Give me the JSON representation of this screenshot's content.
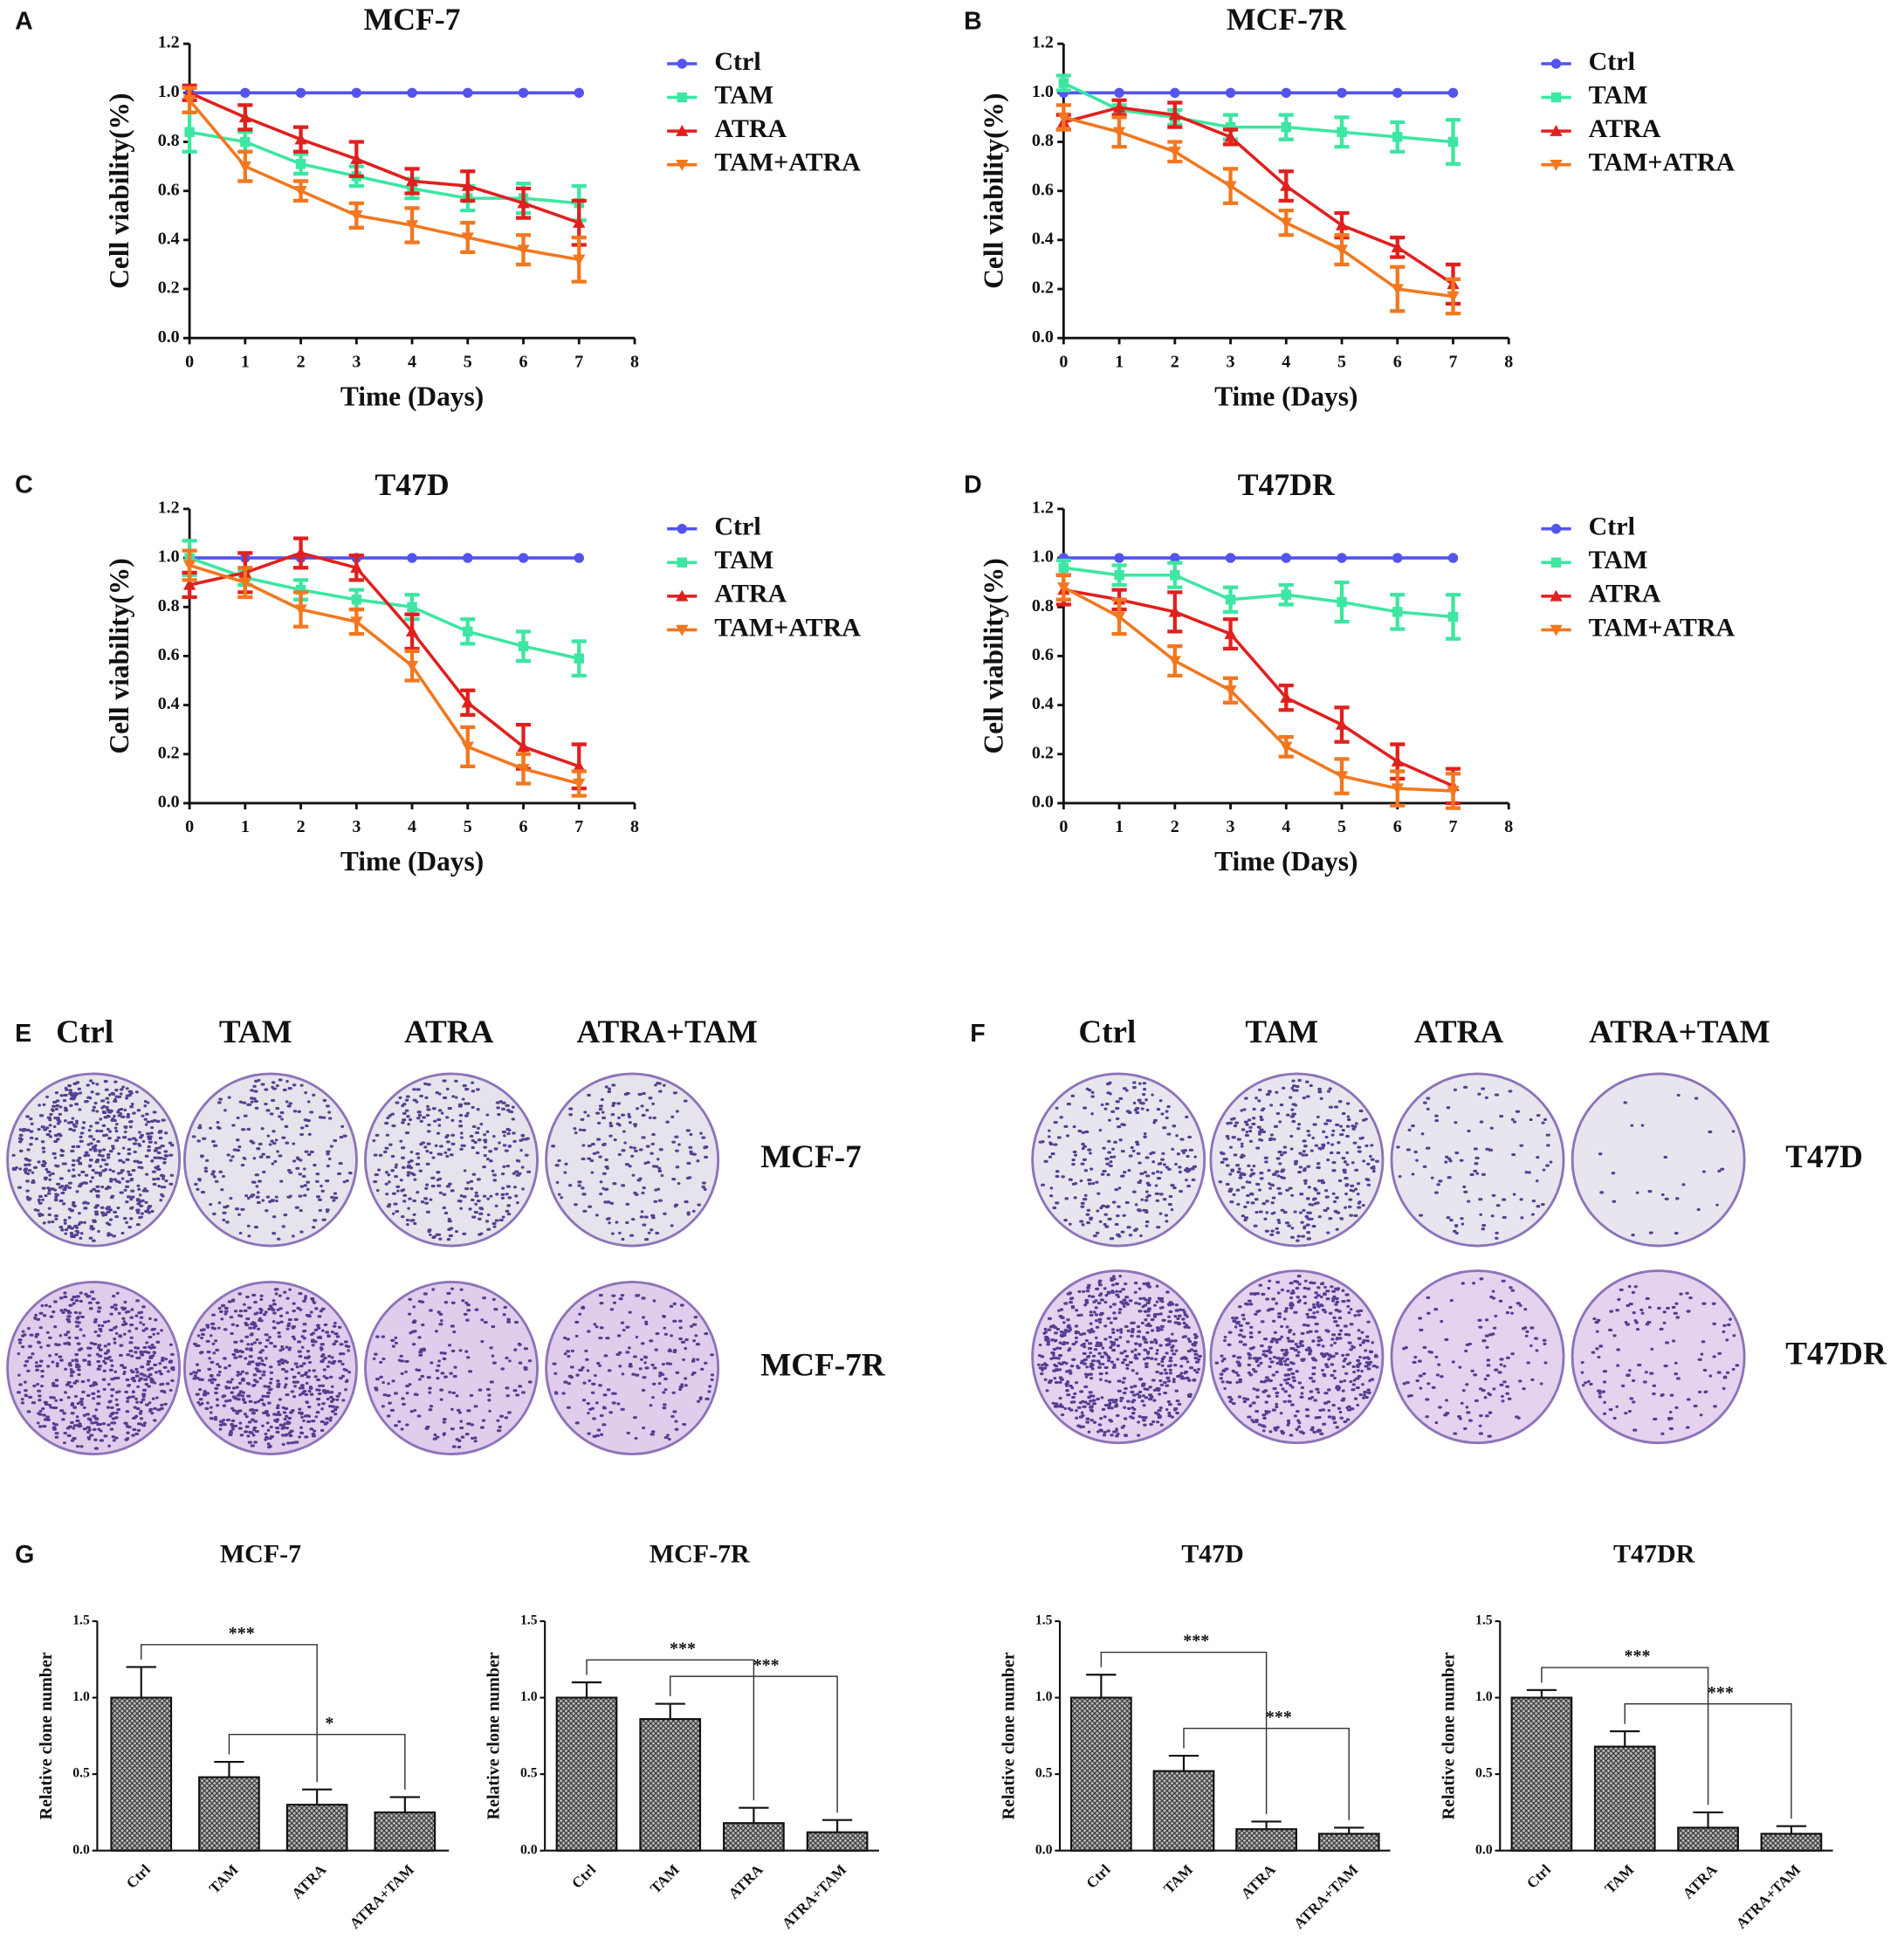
{
  "panel_labels": [
    "A",
    "B",
    "C",
    "D",
    "E",
    "F",
    "G"
  ],
  "plates": [
    {
      "columns": [
        "Ctrl",
        "TAM",
        "ATRA",
        "ATRA+TAM"
      ],
      "rows": [
        "MCF-7",
        "MCF-7R"
      ]
    },
    {
      "columns": [
        "Ctrl",
        "TAM",
        "ATRA",
        "ATRA+TAM"
      ],
      "rows": [
        "T47D",
        "T47DR"
      ]
    }
  ],
  "chart_data": [
    {
      "type": "line",
      "title": "MCF-7",
      "xlabel": "Time (Days)",
      "ylabel": "Cell viability(%)",
      "x": [
        0,
        1,
        2,
        3,
        4,
        5,
        6,
        7
      ],
      "xlim": [
        0,
        8
      ],
      "xticks": [
        0,
        1,
        2,
        3,
        4,
        5,
        6,
        7,
        8
      ],
      "ylim": [
        0,
        1.2
      ],
      "yticks": [
        {
          "value": 0,
          "label": "0.0"
        },
        0.2,
        0.4,
        0.6,
        0.8,
        {
          "value": 1,
          "label": "1.0"
        },
        1.2
      ],
      "series": [
        {
          "name": "Ctrl",
          "color": "#5353ee",
          "marker": "circle",
          "values": [
            1,
            1,
            1,
            1,
            1,
            1,
            1,
            1
          ],
          "errors": [
            0,
            0,
            0,
            0,
            0,
            0,
            0,
            0
          ]
        },
        {
          "name": "TAM",
          "color": "#3de6a2",
          "marker": "square",
          "values": [
            0.84,
            0.8,
            0.71,
            0.66,
            0.61,
            0.57,
            0.57,
            0.55
          ],
          "errors": [
            0.08,
            0.04,
            0.04,
            0.04,
            0.04,
            0.05,
            0.06,
            0.07
          ]
        },
        {
          "name": "ATRA",
          "color": "#e0201e",
          "marker": "triangle-up",
          "values": [
            1,
            0.9,
            0.81,
            0.73,
            0.64,
            0.62,
            0.55,
            0.47
          ],
          "errors": [
            0.03,
            0.05,
            0.05,
            0.07,
            0.05,
            0.06,
            0.06,
            0.09
          ]
        },
        {
          "name": "TAM+ATRA",
          "color": "#f2771f",
          "marker": "triangle-down",
          "values": [
            0.97,
            0.7,
            0.6,
            0.5,
            0.46,
            0.41,
            0.36,
            0.32
          ],
          "errors": [
            0.05,
            0.06,
            0.04,
            0.05,
            0.07,
            0.06,
            0.06,
            0.09
          ]
        }
      ]
    },
    {
      "type": "line",
      "title": "MCF-7R",
      "xlabel": "Time (Days)",
      "ylabel": "Cell viability(%)",
      "x": [
        0,
        1,
        2,
        3,
        4,
        5,
        6,
        7
      ],
      "xlim": [
        0,
        8
      ],
      "xticks": [
        0,
        1,
        2,
        3,
        4,
        5,
        6,
        7,
        8
      ],
      "ylim": [
        0,
        1.2
      ],
      "yticks": [
        {
          "value": 0,
          "label": "0.0"
        },
        0.2,
        0.4,
        0.6,
        0.8,
        {
          "value": 1,
          "label": "1.0"
        },
        1.2
      ],
      "series": [
        {
          "name": "Ctrl",
          "color": "#5353ee",
          "marker": "circle",
          "values": [
            1,
            1,
            1,
            1,
            1,
            1,
            1,
            1
          ],
          "errors": [
            0,
            0,
            0,
            0,
            0,
            0,
            0,
            0
          ]
        },
        {
          "name": "TAM",
          "color": "#3de6a2",
          "marker": "square",
          "values": [
            1.04,
            0.93,
            0.9,
            0.86,
            0.86,
            0.84,
            0.82,
            0.8
          ],
          "errors": [
            0.03,
            0.02,
            0.03,
            0.05,
            0.05,
            0.06,
            0.06,
            0.09
          ]
        },
        {
          "name": "ATRA",
          "color": "#e0201e",
          "marker": "triangle-up",
          "values": [
            0.88,
            0.94,
            0.91,
            0.82,
            0.62,
            0.46,
            0.37,
            0.22
          ],
          "errors": [
            0.03,
            0.03,
            0.05,
            0.03,
            0.06,
            0.05,
            0.04,
            0.08
          ]
        },
        {
          "name": "TAM+ATRA",
          "color": "#f2771f",
          "marker": "triangle-down",
          "values": [
            0.9,
            0.84,
            0.76,
            0.62,
            0.47,
            0.36,
            0.2,
            0.17
          ],
          "errors": [
            0.05,
            0.06,
            0.04,
            0.07,
            0.05,
            0.06,
            0.09,
            0.07
          ]
        }
      ]
    },
    {
      "type": "line",
      "title": "T47D",
      "xlabel": "Time (Days)",
      "ylabel": "Cell viability(%)",
      "x": [
        0,
        1,
        2,
        3,
        4,
        5,
        6,
        7
      ],
      "xlim": [
        0,
        8
      ],
      "xticks": [
        0,
        1,
        2,
        3,
        4,
        5,
        6,
        7,
        8
      ],
      "ylim": [
        0,
        1.2
      ],
      "yticks": [
        {
          "value": 0,
          "label": "0.0"
        },
        0.2,
        0.4,
        0.6,
        0.8,
        {
          "value": 1,
          "label": "1.0"
        },
        1.2
      ],
      "series": [
        {
          "name": "Ctrl",
          "color": "#5353ee",
          "marker": "circle",
          "values": [
            1,
            1,
            1,
            1,
            1,
            1,
            1,
            1
          ],
          "errors": [
            0,
            0,
            0,
            0,
            0,
            0,
            0,
            0
          ]
        },
        {
          "name": "TAM",
          "color": "#3de6a2",
          "marker": "square",
          "values": [
            1,
            0.92,
            0.87,
            0.83,
            0.8,
            0.7,
            0.64,
            0.59
          ],
          "errors": [
            0.07,
            0.03,
            0.04,
            0.04,
            0.05,
            0.05,
            0.06,
            0.07
          ]
        },
        {
          "name": "ATRA",
          "color": "#e0201e",
          "marker": "triangle-up",
          "values": [
            0.89,
            0.94,
            1.02,
            0.96,
            0.7,
            0.41,
            0.23,
            0.15
          ],
          "errors": [
            0.05,
            0.08,
            0.06,
            0.05,
            0.07,
            0.05,
            0.09,
            0.09
          ]
        },
        {
          "name": "TAM+ATRA",
          "color": "#f2771f",
          "marker": "triangle-down",
          "values": [
            0.97,
            0.9,
            0.79,
            0.74,
            0.56,
            0.23,
            0.14,
            0.08
          ],
          "errors": [
            0.06,
            0.06,
            0.07,
            0.05,
            0.06,
            0.08,
            0.06,
            0.05
          ]
        }
      ]
    },
    {
      "type": "line",
      "title": "T47DR",
      "xlabel": "Time (Days)",
      "ylabel": "Cell viability(%)",
      "x": [
        0,
        1,
        2,
        3,
        4,
        5,
        6,
        7
      ],
      "xlim": [
        0,
        8
      ],
      "xticks": [
        0,
        1,
        2,
        3,
        4,
        5,
        6,
        7,
        8
      ],
      "ylim": [
        0,
        1.2
      ],
      "yticks": [
        {
          "value": 0,
          "label": "0.0"
        },
        0.2,
        0.4,
        0.6,
        0.8,
        {
          "value": 1,
          "label": "1.0"
        },
        1.2
      ],
      "series": [
        {
          "name": "Ctrl",
          "color": "#5353ee",
          "marker": "circle",
          "values": [
            1,
            1,
            1,
            1,
            1,
            1,
            1,
            1
          ],
          "errors": [
            0,
            0,
            0,
            0,
            0,
            0,
            0,
            0
          ]
        },
        {
          "name": "TAM",
          "color": "#3de6a2",
          "marker": "square",
          "values": [
            0.96,
            0.93,
            0.93,
            0.83,
            0.85,
            0.82,
            0.78,
            0.76
          ],
          "errors": [
            0.03,
            0.04,
            0.05,
            0.05,
            0.04,
            0.08,
            0.07,
            0.09
          ]
        },
        {
          "name": "ATRA",
          "color": "#e0201e",
          "marker": "triangle-up",
          "values": [
            0.87,
            0.83,
            0.78,
            0.69,
            0.43,
            0.32,
            0.17,
            0.07
          ],
          "errors": [
            0.06,
            0.04,
            0.08,
            0.06,
            0.05,
            0.07,
            0.07,
            0.07
          ]
        },
        {
          "name": "TAM+ATRA",
          "color": "#f2771f",
          "marker": "triangle-down",
          "values": [
            0.88,
            0.76,
            0.58,
            0.46,
            0.23,
            0.11,
            0.06,
            0.05
          ],
          "errors": [
            0.05,
            0.07,
            0.06,
            0.05,
            0.04,
            0.07,
            0.07,
            0.07
          ]
        }
      ]
    },
    {
      "type": "bar",
      "title": "MCF-7",
      "ylabel": "Relative clone number",
      "categories": [
        "Ctrl",
        "TAM",
        "ATRA",
        "ATRA+TAM"
      ],
      "values": [
        1,
        0.48,
        0.3,
        0.25
      ],
      "errors": [
        0.2,
        0.1,
        0.1,
        0.1
      ],
      "ylim": [
        0,
        1.5
      ],
      "yticks": [
        {
          "value": 0,
          "label": "0.0"
        },
        0.5,
        {
          "value": 1,
          "label": "1.0"
        },
        1.5
      ],
      "annotations": [
        {
          "text": "***",
          "between": [
            "Ctrl",
            "ATRA"
          ]
        },
        {
          "text": "*",
          "between": [
            "TAM",
            "ATRA+TAM"
          ]
        }
      ]
    },
    {
      "type": "bar",
      "title": "MCF-7R",
      "ylabel": "Relative clone number",
      "categories": [
        "Ctrl",
        "TAM",
        "ATRA",
        "ATRA+TAM"
      ],
      "values": [
        1,
        0.86,
        0.18,
        0.12
      ],
      "errors": [
        0.1,
        0.1,
        0.1,
        0.08
      ],
      "ylim": [
        0,
        1.5
      ],
      "yticks": [
        {
          "value": 0,
          "label": "0.0"
        },
        0.5,
        {
          "value": 1,
          "label": "1.0"
        },
        1.5
      ],
      "annotations": [
        {
          "text": "***",
          "between": [
            "Ctrl",
            "ATRA"
          ]
        },
        {
          "text": "***",
          "between": [
            "TAM",
            "ATRA+TAM"
          ]
        }
      ]
    },
    {
      "type": "bar",
      "title": "T47D",
      "ylabel": "Relative clone number",
      "categories": [
        "Ctrl",
        "TAM",
        "ATRA",
        "ATRA+TAM"
      ],
      "values": [
        1,
        0.52,
        0.14,
        0.11
      ],
      "errors": [
        0.15,
        0.1,
        0.05,
        0.04
      ],
      "ylim": [
        0,
        1.5
      ],
      "yticks": [
        {
          "value": 0,
          "label": "0.0"
        },
        0.5,
        {
          "value": 1,
          "label": "1.0"
        },
        1.5
      ],
      "annotations": [
        {
          "text": "***",
          "between": [
            "Ctrl",
            "ATRA"
          ]
        },
        {
          "text": "***",
          "between": [
            "TAM",
            "ATRA+TAM"
          ]
        }
      ]
    },
    {
      "type": "bar",
      "title": "T47DR",
      "ylabel": "Relative clone number",
      "categories": [
        "Ctrl",
        "TAM",
        "ATRA",
        "ATRA+TAM"
      ],
      "values": [
        1,
        0.68,
        0.15,
        0.11
      ],
      "errors": [
        0.05,
        0.1,
        0.1,
        0.05
      ],
      "ylim": [
        0,
        1.5
      ],
      "yticks": [
        {
          "value": 0,
          "label": "0.0"
        },
        0.5,
        {
          "value": 1,
          "label": "1.0"
        },
        1.5
      ],
      "annotations": [
        {
          "text": "***",
          "between": [
            "Ctrl",
            "ATRA"
          ]
        },
        {
          "text": "***",
          "between": [
            "TAM",
            "ATRA+TAM"
          ]
        }
      ]
    }
  ]
}
